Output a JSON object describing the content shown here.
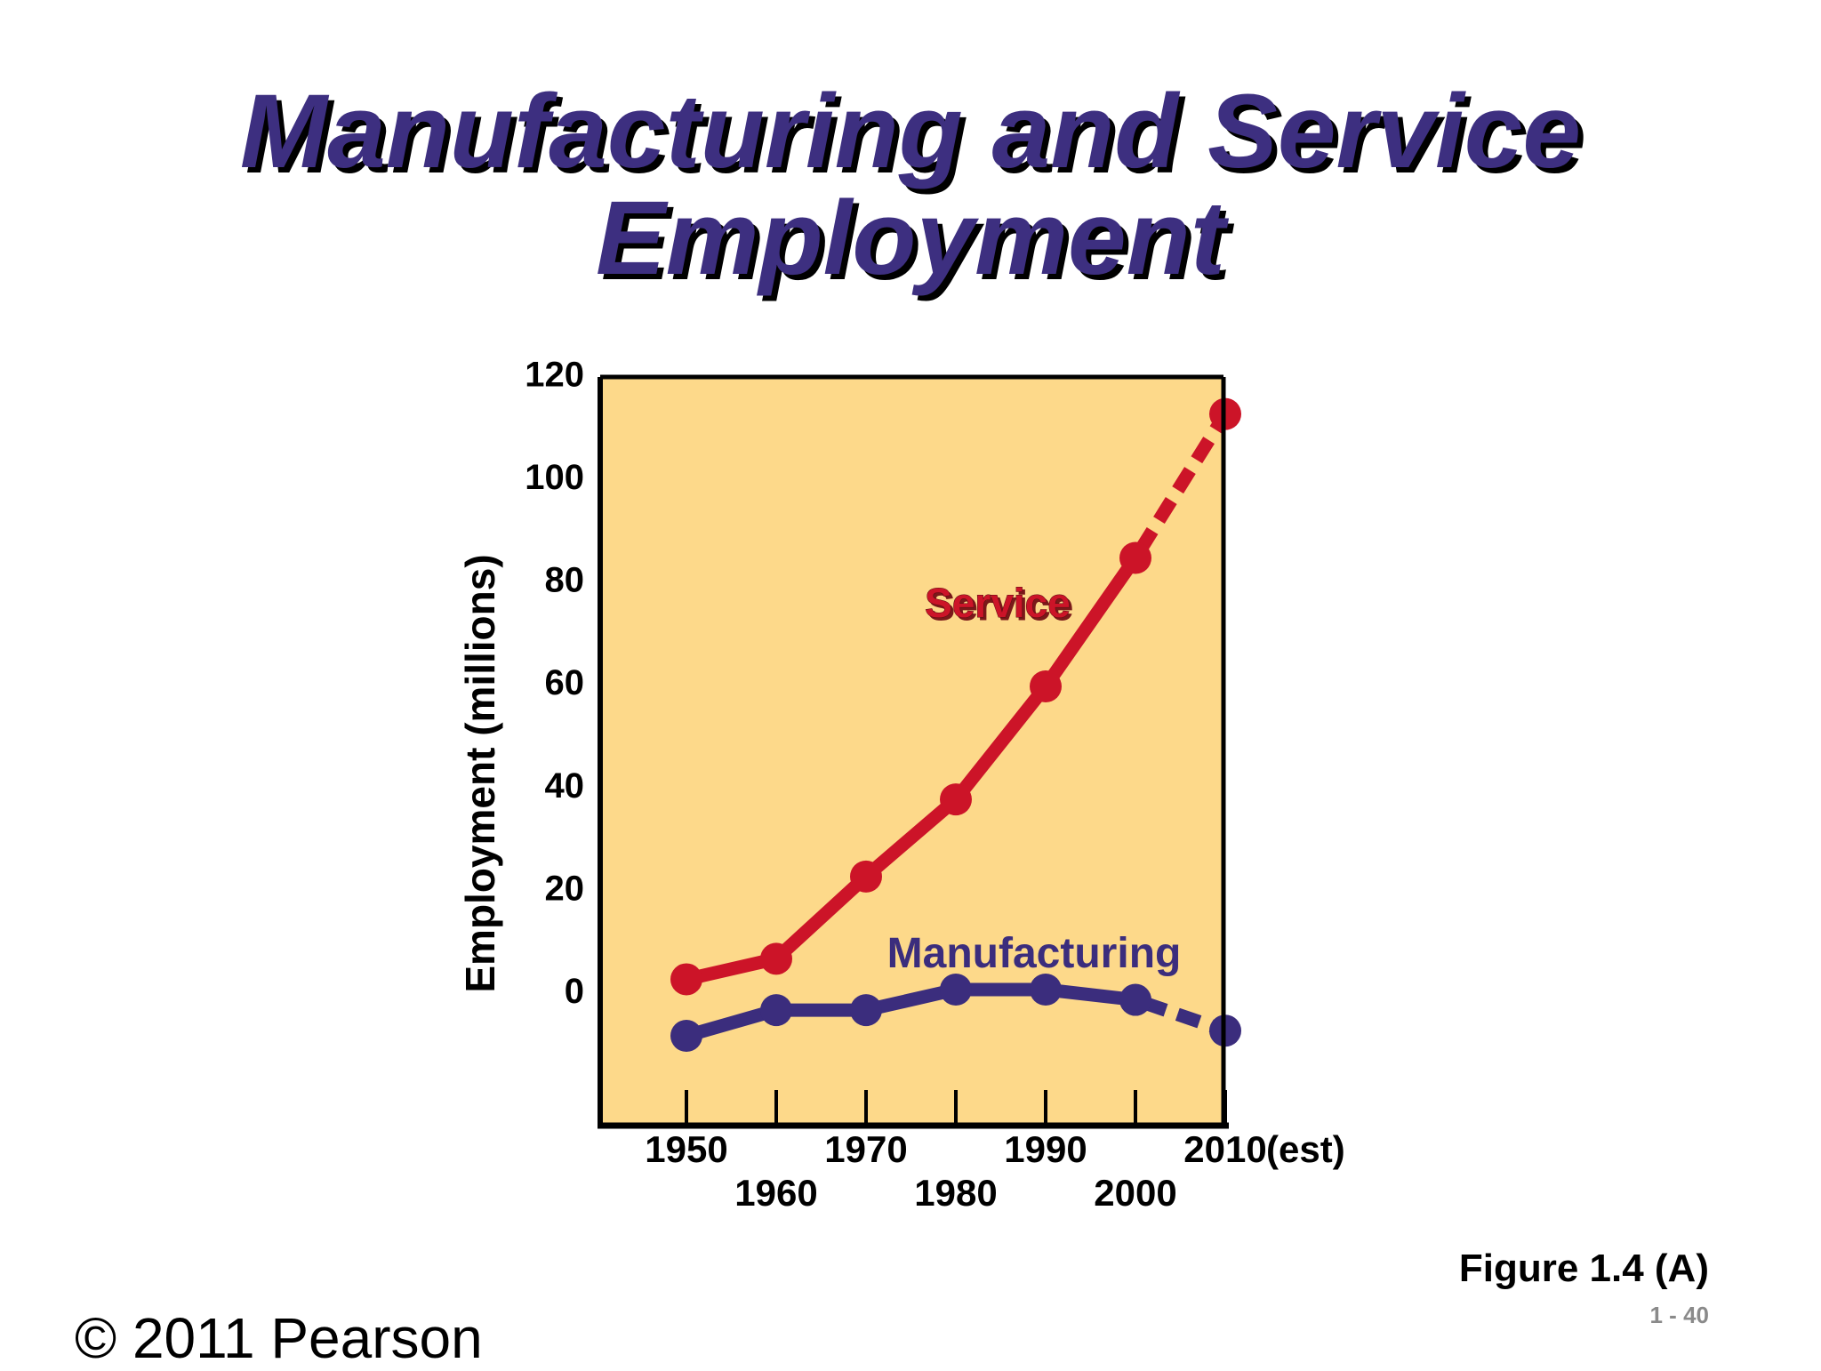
{
  "slide": {
    "title_line1": "Manufacturing and Service",
    "title_line2": "Employment",
    "figure_label": "Figure 1.4 (A)",
    "page_number": "1 - 40",
    "copyright": "© 2011 Pearson"
  },
  "colors": {
    "title": "#3d2f80",
    "title_shadow": "#000000",
    "plot_background": "#fdd98a",
    "service": "#cc1428",
    "manufacturing": "#3b2d7d",
    "axis": "#000000"
  },
  "chart_data": {
    "type": "line",
    "title": "",
    "xlabel": "",
    "ylabel": "Employment (millions)",
    "ylim": [
      -27,
      120
    ],
    "y_ticks": [
      "120",
      "100",
      "80",
      "60",
      "40",
      "20",
      "0"
    ],
    "y_tick_values": [
      120,
      100,
      80,
      60,
      40,
      20,
      0
    ],
    "x": [
      1950,
      1960,
      1970,
      1980,
      1990,
      2000,
      2010
    ],
    "x_tick_labels": [
      "1950",
      "1960",
      "1970",
      "1980",
      "1990",
      "2000",
      "2010"
    ],
    "x_est_suffix": "(est)",
    "grid": false,
    "legend": "labels on chart",
    "series": [
      {
        "name": "Service",
        "values": [
          2,
          6,
          22,
          37,
          59,
          84,
          112
        ],
        "dashed_last_segment": true
      },
      {
        "name": "Manufacturing",
        "values": [
          -9,
          -4,
          -4,
          0,
          0,
          -2,
          -8
        ],
        "dashed_last_segment": true
      }
    ]
  }
}
